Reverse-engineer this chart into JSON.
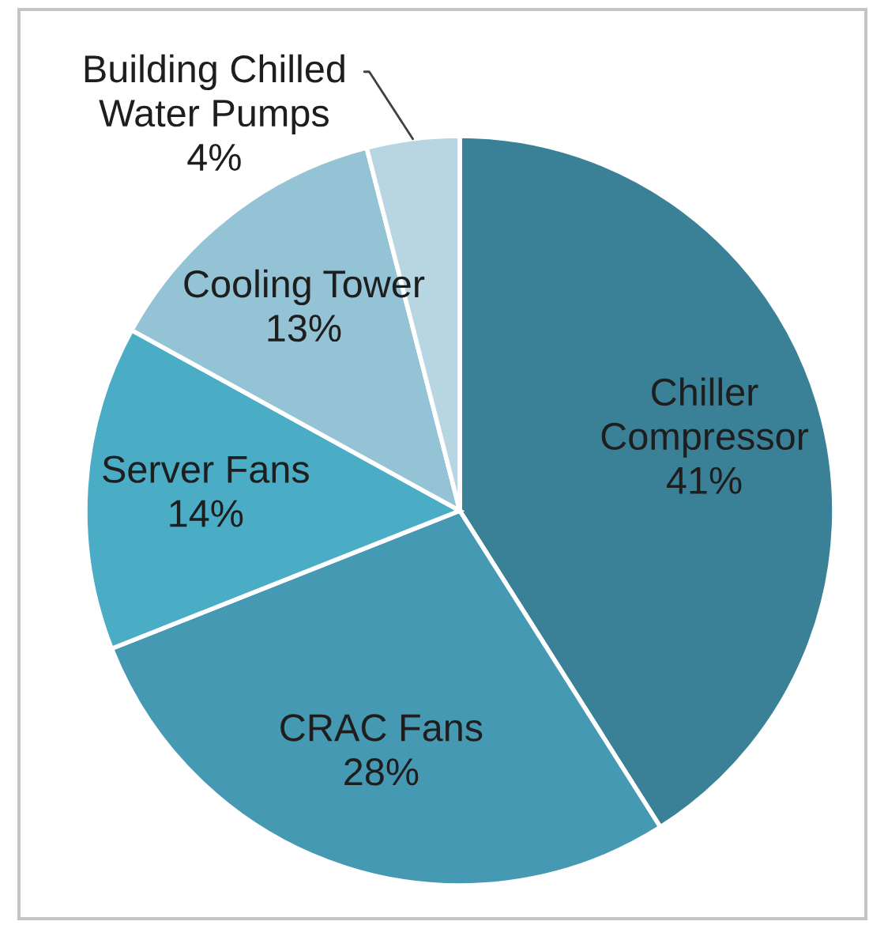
{
  "chart_data": {
    "type": "pie",
    "categories": [
      "Chiller\nCompressor",
      "CRAC Fans",
      "Server Fans",
      "Cooling Tower",
      "Building Chilled\nWater Pumps"
    ],
    "values": [
      41,
      28,
      14,
      13,
      4
    ],
    "value_labels": [
      "41%",
      "28%",
      "14%",
      "13%",
      "4%"
    ],
    "colors": [
      "#3a8197",
      "#4599b3",
      "#4bacc6",
      "#93c3d5",
      "#b7d6e2"
    ]
  }
}
